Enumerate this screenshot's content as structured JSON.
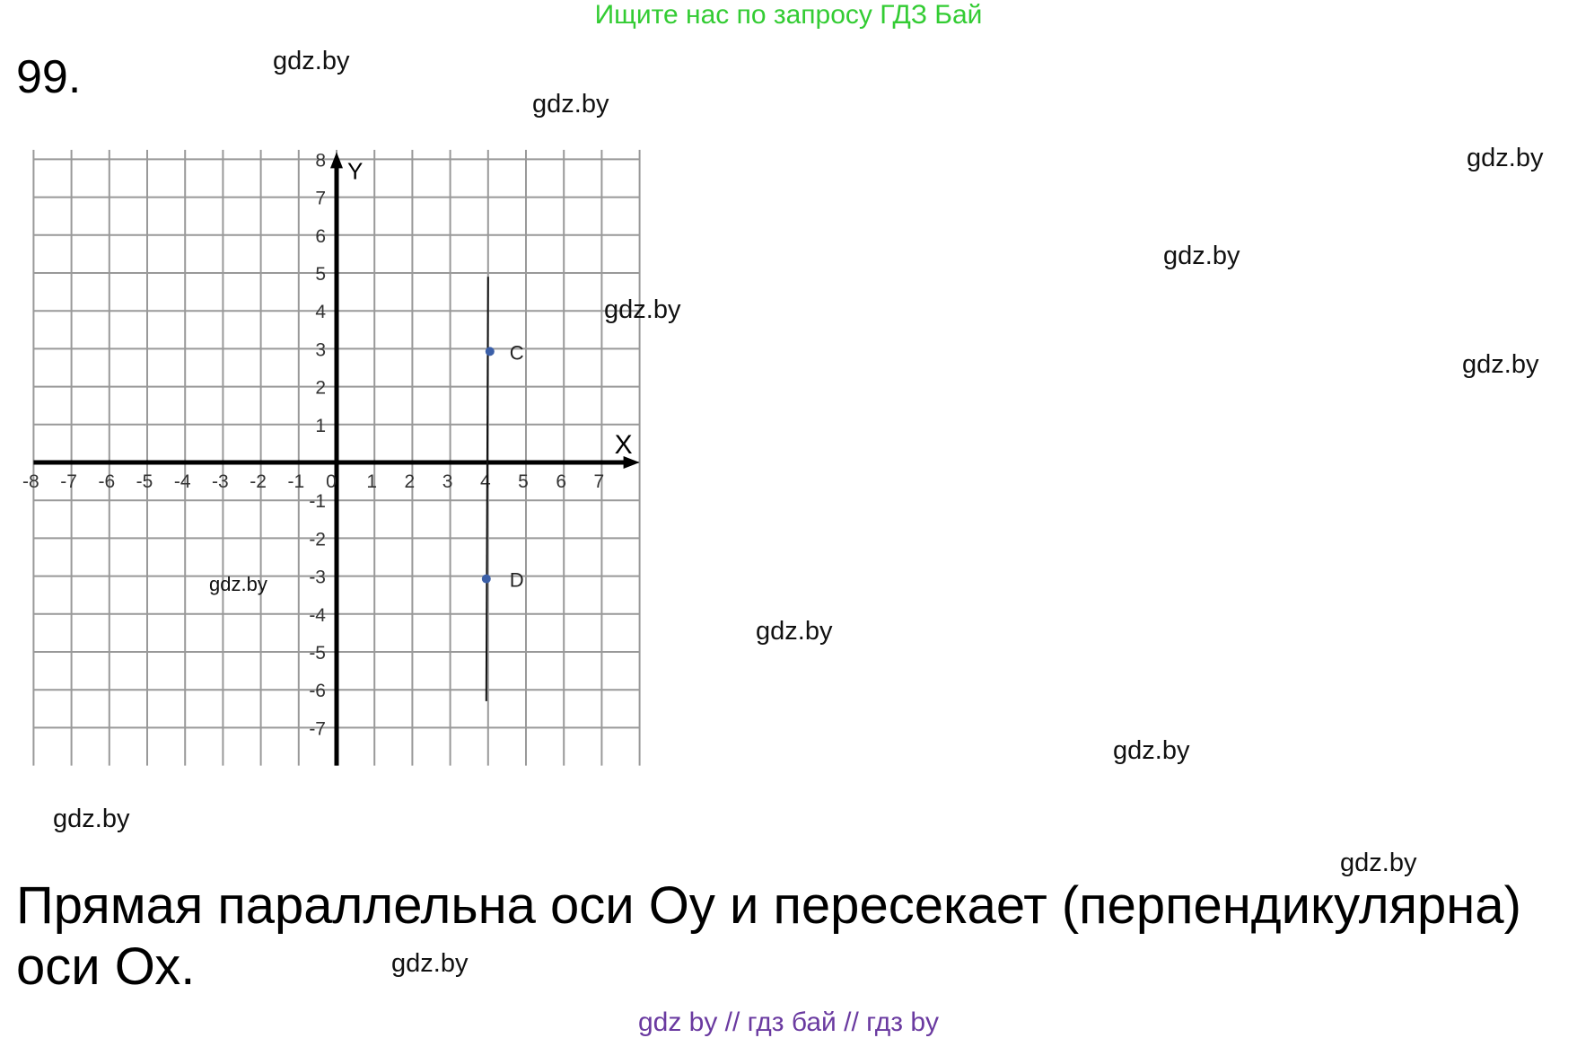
{
  "promo_text": "Ищите нас по запросу ГДЗ Бай",
  "task_number": "99.",
  "watermarks": [
    "gdz.by",
    "gdz.by",
    "gdz.by",
    "gdz.by",
    "gdz.by",
    "gdz.by",
    "gdz.by",
    "gdz.by",
    "gdz.by",
    "gdz.by",
    "gdz.by",
    "gdz.by"
  ],
  "answer_text": "Прямая параллельна оси Оу и пересекает (перпендикулярна) оси Ох.",
  "footer_text": "gdz by  //  гдз бай  //  гдз by",
  "colors": {
    "promo": "#33cc33",
    "footer": "#6a3aa0",
    "point": "#3b5fa8",
    "grid": "#999999"
  },
  "chart_data": {
    "type": "scatter",
    "xlabel": "X",
    "ylabel": "Y",
    "xlim": [
      -8,
      8
    ],
    "ylim": [
      -8,
      8
    ],
    "grid": true,
    "x_ticks": [
      "-8",
      "-7",
      "-6",
      "-5",
      "-4",
      "-3",
      "-2",
      "-1",
      "0",
      "1",
      "2",
      "3",
      "4",
      "5",
      "6",
      "7"
    ],
    "y_ticks": [
      "8",
      "7",
      "6",
      "5",
      "4",
      "3",
      "2",
      "1",
      "-1",
      "-2",
      "-3",
      "-4",
      "-5",
      "-6",
      "-7"
    ],
    "points": [
      {
        "label": "C",
        "x": 4,
        "y": 3
      },
      {
        "label": "D",
        "x": 4,
        "y": -3
      }
    ],
    "line": {
      "x": 4,
      "y_from": -6.3,
      "y_to": 4.9
    }
  }
}
